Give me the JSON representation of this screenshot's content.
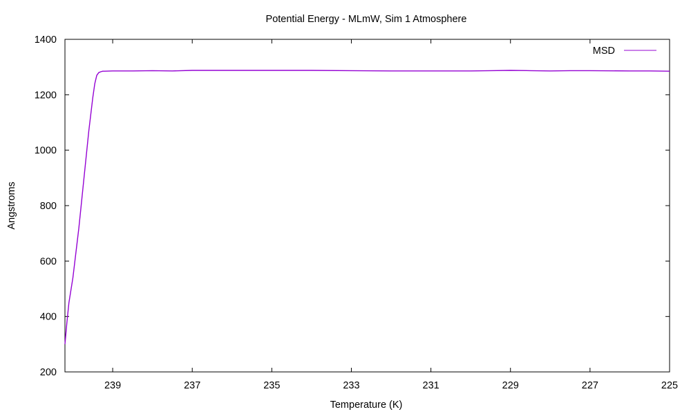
{
  "chart_data": {
    "type": "line",
    "title": "Potential Energy - MLmW, Sim 1 Atmosphere",
    "xlabel": "Temperature (K)",
    "ylabel": "Angstroms",
    "xlim": [
      240.2,
      225
    ],
    "ylim": [
      200,
      1400
    ],
    "x_reversed": true,
    "xticks": [
      239,
      237,
      235,
      233,
      231,
      229,
      227,
      225
    ],
    "yticks": [
      200,
      400,
      600,
      800,
      1000,
      1200,
      1400
    ],
    "grid": false,
    "legend_position": "top-right",
    "series": [
      {
        "name": "MSD",
        "color": "#9400d3",
        "x": [
          240.2,
          240.15,
          240.1,
          240.0,
          239.95,
          239.9,
          239.85,
          239.8,
          239.75,
          239.7,
          239.65,
          239.6,
          239.55,
          239.5,
          239.45,
          239.4,
          239.35,
          239.3,
          239.25,
          239.2,
          239.0,
          238.5,
          238.0,
          237.5,
          237.0,
          236.0,
          235.0,
          234.0,
          233.0,
          232.0,
          231.0,
          230.0,
          229.5,
          229.0,
          228.5,
          228.0,
          227.5,
          227.0,
          226.0,
          225.5,
          225.0
        ],
        "y": [
          300,
          380,
          450,
          540,
          600,
          660,
          720,
          790,
          860,
          930,
          1000,
          1070,
          1130,
          1190,
          1240,
          1270,
          1280,
          1283,
          1285,
          1285,
          1286,
          1286,
          1287,
          1286,
          1288,
          1288,
          1288,
          1288,
          1287,
          1286,
          1286,
          1286,
          1287,
          1288,
          1287,
          1286,
          1287,
          1287,
          1286,
          1286,
          1285
        ]
      }
    ]
  }
}
